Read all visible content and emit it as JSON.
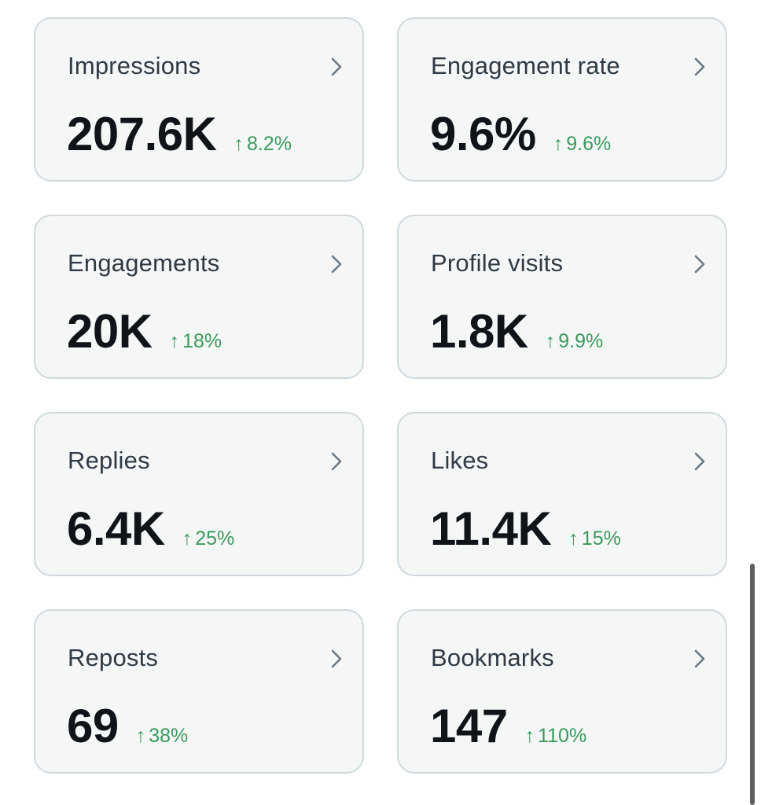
{
  "metrics": [
    {
      "title": "Impressions",
      "value": "207.6K",
      "delta": "8.2%"
    },
    {
      "title": "Engagement rate",
      "value": "9.6%",
      "delta": "9.6%"
    },
    {
      "title": "Engagements",
      "value": "20K",
      "delta": "18%"
    },
    {
      "title": "Profile visits",
      "value": "1.8K",
      "delta": "9.9%"
    },
    {
      "title": "Replies",
      "value": "6.4K",
      "delta": "25%"
    },
    {
      "title": "Likes",
      "value": "11.4K",
      "delta": "15%"
    },
    {
      "title": "Reposts",
      "value": "69",
      "delta": "38%"
    },
    {
      "title": "Bookmarks",
      "value": "147",
      "delta": "110%"
    }
  ],
  "delta_arrow": "↑",
  "icons": {
    "chevron": "chevron-right-icon",
    "trend": "arrow-up-icon"
  },
  "colors": {
    "card_background": "#f5f7f7",
    "card_border": "#cfd9de",
    "title_text": "#2f3a44",
    "value_text": "#0f1419",
    "positive_delta": "#3a9a5c",
    "chevron": "#6b7a85"
  }
}
